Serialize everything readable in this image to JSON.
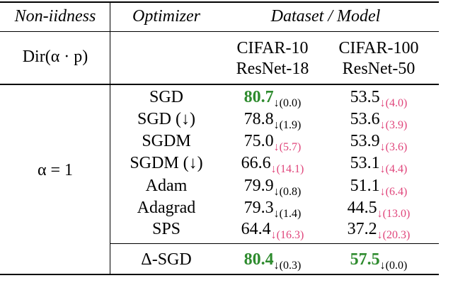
{
  "header": {
    "non_iidness": "Non-iidness",
    "optimizer": "Optimizer",
    "dataset_model": "Dataset / Model"
  },
  "setting": {
    "label": "Dir(α · p)",
    "datasets": [
      [
        "CIFAR-10",
        "ResNet-18"
      ],
      [
        "CIFAR-100",
        "ResNet-50"
      ]
    ]
  },
  "group": {
    "label": "α = 1",
    "rows": [
      {
        "optimizer": "SGD",
        "results": [
          {
            "value": "80.7",
            "drop": "↓(0.0)",
            "best": true,
            "drop_color": "#000000"
          },
          {
            "value": "53.5",
            "drop": "↓(4.0)",
            "best": false,
            "drop_color": "#e0457b"
          }
        ]
      },
      {
        "optimizer": "SGD (↓)",
        "results": [
          {
            "value": "78.8",
            "drop": "↓(1.9)",
            "best": false,
            "drop_color": "#000000"
          },
          {
            "value": "53.6",
            "drop": "↓(3.9)",
            "best": false,
            "drop_color": "#e0457b"
          }
        ]
      },
      {
        "optimizer": "SGDM",
        "results": [
          {
            "value": "75.0",
            "drop": "↓(5.7)",
            "best": false,
            "drop_color": "#e0457b"
          },
          {
            "value": "53.9",
            "drop": "↓(3.6)",
            "best": false,
            "drop_color": "#e0457b"
          }
        ]
      },
      {
        "optimizer": "SGDM (↓)",
        "results": [
          {
            "value": "66.6",
            "drop": "↓(14.1)",
            "best": false,
            "drop_color": "#e0457b"
          },
          {
            "value": "53.1",
            "drop": "↓(4.4)",
            "best": false,
            "drop_color": "#e0457b"
          }
        ]
      },
      {
        "optimizer": "Adam",
        "results": [
          {
            "value": "79.9",
            "drop": "↓(0.8)",
            "best": false,
            "drop_color": "#000000"
          },
          {
            "value": "51.1",
            "drop": "↓(6.4)",
            "best": false,
            "drop_color": "#e0457b"
          }
        ]
      },
      {
        "optimizer": "Adagrad",
        "results": [
          {
            "value": "79.3",
            "drop": "↓(1.4)",
            "best": false,
            "drop_color": "#000000"
          },
          {
            "value": "44.5",
            "drop": "↓(13.0)",
            "best": false,
            "drop_color": "#e0457b"
          }
        ]
      },
      {
        "optimizer": "SPS",
        "results": [
          {
            "value": "64.4",
            "drop": "↓(16.3)",
            "best": false,
            "drop_color": "#e0457b"
          },
          {
            "value": "37.2",
            "drop": "↓(20.3)",
            "best": false,
            "drop_color": "#e0457b"
          }
        ]
      }
    ]
  },
  "proposed": {
    "optimizer": "Δ-SGD",
    "results": [
      {
        "value": "80.4",
        "drop": "↓(0.3)",
        "best": true,
        "drop_color": "#000000"
      },
      {
        "value": "57.5",
        "drop": "↓(0.0)",
        "best": true,
        "drop_color": "#000000"
      }
    ]
  }
}
